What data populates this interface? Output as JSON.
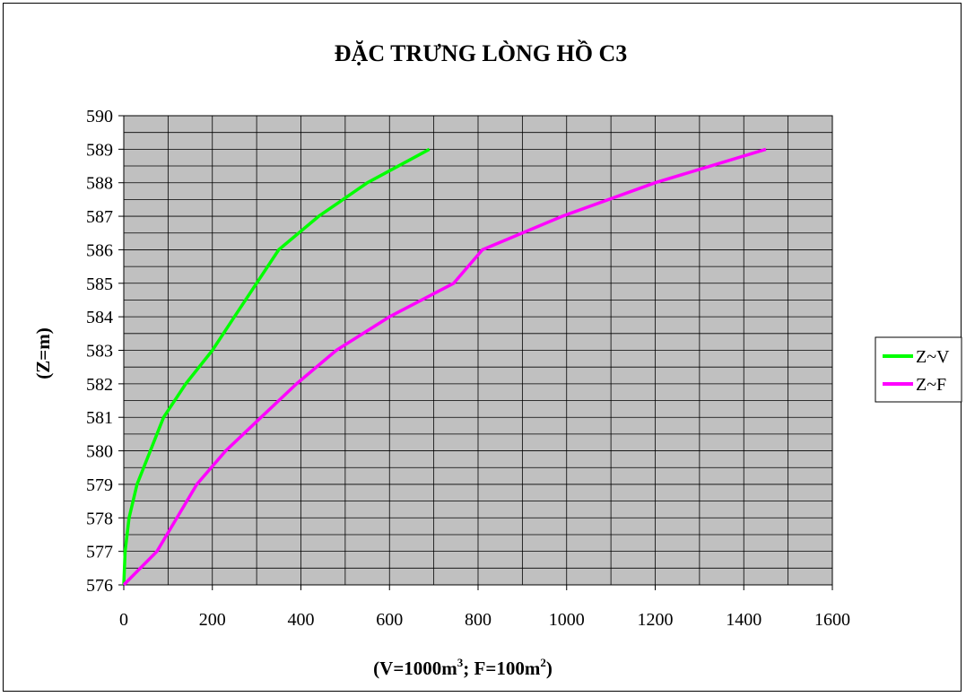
{
  "chart_data": {
    "type": "line",
    "title": "ĐẶC TRƯNG LÒNG HỒ C3",
    "xlabel": "(V=1000m³; F=100m²)",
    "xlabel_parts": {
      "v_base": "(V=1000m",
      "v_sup": "3",
      "mid": "; F=100m",
      "f_sup": "2",
      "end": ")"
    },
    "ylabel": "(Z=m)",
    "xlim": [
      0,
      1600
    ],
    "ylim": [
      576,
      590
    ],
    "xticks": [
      0,
      200,
      400,
      600,
      800,
      1000,
      1200,
      1400,
      1600
    ],
    "yticks": [
      576,
      577,
      578,
      579,
      580,
      581,
      582,
      583,
      584,
      585,
      586,
      587,
      588,
      589,
      590
    ],
    "x_minor_step": 100,
    "y_minor_step": 0.5,
    "grid": true,
    "plot_background": "#c0c0c0",
    "legend_position": "right",
    "series": [
      {
        "name": "Z~V",
        "color": "#00ff00",
        "points": [
          [
            0,
            576
          ],
          [
            3,
            577
          ],
          [
            12,
            578
          ],
          [
            30,
            579
          ],
          [
            60,
            580
          ],
          [
            90,
            581
          ],
          [
            140,
            582
          ],
          [
            200,
            583
          ],
          [
            250,
            584
          ],
          [
            350,
            586
          ],
          [
            440,
            587
          ],
          [
            550,
            588
          ],
          [
            690,
            589
          ]
        ]
      },
      {
        "name": "Z~F",
        "color": "#ff00ff",
        "points": [
          [
            0,
            576
          ],
          [
            75,
            577
          ],
          [
            165,
            579
          ],
          [
            230,
            580
          ],
          [
            310,
            581
          ],
          [
            390,
            582
          ],
          [
            480,
            583
          ],
          [
            600,
            584
          ],
          [
            745,
            585
          ],
          [
            810,
            586
          ],
          [
            990,
            587
          ],
          [
            1200,
            588
          ],
          [
            1450,
            589
          ]
        ]
      }
    ]
  }
}
